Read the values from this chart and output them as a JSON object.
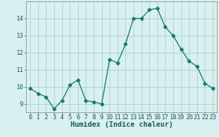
{
  "x": [
    0,
    1,
    2,
    3,
    4,
    5,
    6,
    7,
    8,
    9,
    10,
    11,
    12,
    13,
    14,
    15,
    16,
    17,
    18,
    19,
    20,
    21,
    22,
    23
  ],
  "y": [
    9.9,
    9.6,
    9.4,
    8.7,
    9.2,
    10.1,
    10.4,
    9.2,
    9.1,
    9.0,
    11.6,
    11.4,
    12.5,
    14.0,
    14.0,
    14.5,
    14.6,
    13.5,
    13.0,
    12.2,
    11.5,
    11.2,
    10.2,
    9.9
  ],
  "line_color": "#1a7a6e",
  "bg_color": "#d8f0f0",
  "grid_color": "#aacece",
  "xlabel": "Humidex (Indice chaleur)",
  "ylim": [
    8.5,
    15.0
  ],
  "xlim": [
    -0.5,
    23.5
  ],
  "yticks": [
    9,
    10,
    11,
    12,
    13,
    14
  ],
  "xticks": [
    0,
    1,
    2,
    3,
    4,
    5,
    6,
    7,
    8,
    9,
    10,
    11,
    12,
    13,
    14,
    15,
    16,
    17,
    18,
    19,
    20,
    21,
    22,
    23
  ],
  "marker": "D",
  "markersize": 2.5,
  "linewidth": 1.0,
  "xlabel_fontsize": 7.5,
  "tick_fontsize": 6.5
}
